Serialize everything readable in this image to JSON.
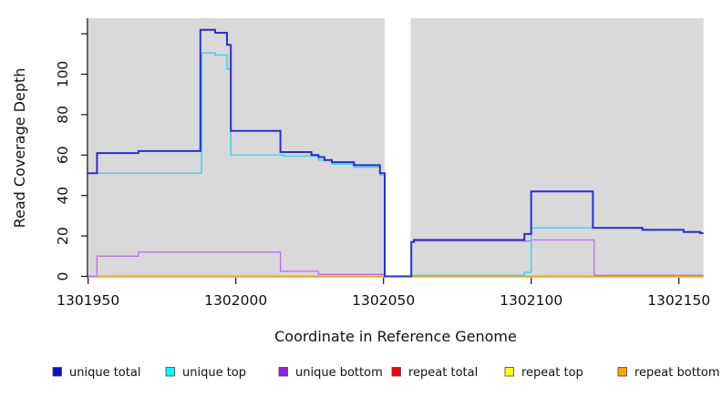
{
  "chart_data": {
    "type": "line",
    "step": true,
    "title": "",
    "xlabel": "Coordinate in Reference Genome",
    "ylabel": "Read Coverage Depth",
    "x_ticks": [
      1301950,
      1302000,
      1302050,
      1302100,
      1302150
    ],
    "x_tick_labels": [
      "1301950",
      "1302000",
      "1302050",
      "1302100",
      "1302150"
    ],
    "y_ticks": [
      0,
      20,
      40,
      60,
      80,
      100,
      120
    ],
    "y_tick_labels": [
      "0",
      "20",
      "40",
      "60",
      "80",
      "100",
      ""
    ],
    "xlim": [
      1301950,
      1302158.3
    ],
    "ylim": [
      -0.8,
      127.7
    ],
    "panel_bg": "#d9d9d9",
    "no_data_region": {
      "from": 1302050.4,
      "to": 1302059.2
    },
    "legend_position": "bottom",
    "draw_order": [
      3,
      4,
      5,
      2,
      1,
      0
    ],
    "series": [
      {
        "name": "unique total",
        "color": "#2A2ADF",
        "legend_color": "#0D0DCE",
        "width": 2,
        "points": [
          [
            1301950,
            51
          ],
          [
            1301953,
            61
          ],
          [
            1301967,
            62
          ],
          [
            1301988,
            122
          ],
          [
            1301993,
            120.5
          ],
          [
            1301997,
            114.5
          ],
          [
            1301998.3,
            72
          ],
          [
            1302015.1,
            61.5
          ],
          [
            1302025.6,
            60
          ],
          [
            1302028,
            59
          ],
          [
            1302030,
            57.5
          ],
          [
            1302032.5,
            56.5
          ],
          [
            1302040,
            55
          ],
          [
            1302048.8,
            51
          ],
          [
            1302050.4,
            0
          ],
          [
            1302059.4,
            17
          ],
          [
            1302060.3,
            18
          ],
          [
            1302097.7,
            21
          ],
          [
            1302100,
            42
          ],
          [
            1302120.9,
            24
          ],
          [
            1302137.7,
            23
          ],
          [
            1302151.6,
            22
          ],
          [
            1302157.2,
            21.4
          ],
          [
            1302158.3,
            21.4
          ]
        ]
      },
      {
        "name": "unique top",
        "color": "#35D8EC",
        "legend_color": "#00FFFF",
        "width": 1.5,
        "points": [
          [
            1301950,
            51
          ],
          [
            1301988.4,
            110.5
          ],
          [
            1301993,
            109.5
          ],
          [
            1301997,
            102.5
          ],
          [
            1301998.3,
            60
          ],
          [
            1302016,
            59.5
          ],
          [
            1302028,
            57.5
          ],
          [
            1302032.5,
            55.5
          ],
          [
            1302040,
            54
          ],
          [
            1302048.8,
            50
          ],
          [
            1302050.4,
            0
          ],
          [
            1302059.4,
            0.5
          ],
          [
            1302097.7,
            2
          ],
          [
            1302100,
            24
          ],
          [
            1302137.7,
            23
          ],
          [
            1302151.6,
            22
          ],
          [
            1302157.2,
            21.4
          ],
          [
            1302158.3,
            21.4
          ]
        ]
      },
      {
        "name": "unique bottom",
        "color": "#B76DF2",
        "legend_color": "#9520E2",
        "width": 1.3,
        "points": [
          [
            1301950,
            0
          ],
          [
            1301953,
            10
          ],
          [
            1301967,
            12
          ],
          [
            1302015.1,
            2.5
          ],
          [
            1302028,
            1
          ],
          [
            1302050.4,
            0
          ],
          [
            1302059.4,
            17
          ],
          [
            1302060.3,
            17.5
          ],
          [
            1302100,
            18
          ],
          [
            1302121.3,
            0.5
          ],
          [
            1302158.3,
            0.5
          ]
        ]
      },
      {
        "name": "repeat total",
        "color": "#E02525",
        "legend_color": "#FF0000",
        "width": 1.3,
        "points": [
          [
            1301950,
            0
          ],
          [
            1302158.3,
            0
          ]
        ]
      },
      {
        "name": "repeat top",
        "color": "#F2E428",
        "legend_color": "#FFFF00",
        "width": 1.3,
        "points": [
          [
            1301950,
            0
          ],
          [
            1302158.3,
            0
          ]
        ]
      },
      {
        "name": "repeat bottom",
        "color": "#FF9C1C",
        "legend_color": "#FFA500",
        "width": 1.5,
        "points": [
          [
            1301950,
            0
          ],
          [
            1302158.3,
            0
          ]
        ]
      }
    ]
  }
}
